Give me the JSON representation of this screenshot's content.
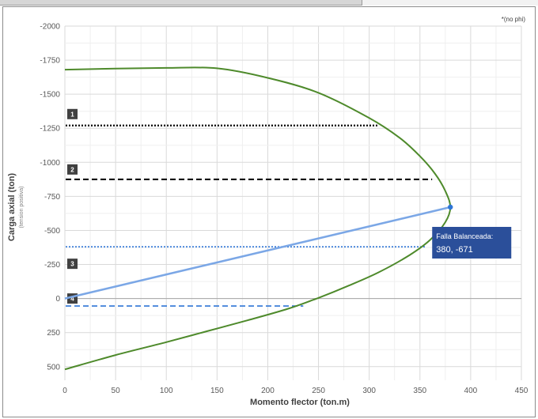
{
  "chart_data": {
    "type": "line",
    "note": "*(no phi)",
    "xlabel": "Momento flector  (ton.m)",
    "ylabel": "Carga axial  (ton)",
    "ylabel_sub": "(tension positiva)",
    "xlim": [
      0,
      450
    ],
    "ylim": [
      -2000,
      600
    ],
    "x_ticks": [
      0,
      50,
      100,
      150,
      200,
      250,
      300,
      350,
      400,
      450
    ],
    "y_ticks": [
      -2000,
      -1750,
      -1500,
      -1250,
      -1000,
      -750,
      -500,
      -250,
      0,
      250,
      500
    ],
    "y_tick_labels": [
      "-2000",
      "-1750",
      "-1500",
      "-1250",
      "-1000",
      "-750",
      "-500",
      "-250",
      "0",
      "250",
      "500"
    ],
    "y_reversed": true,
    "grid": true,
    "series": [
      {
        "color": "#4e8a2b",
        "style": "solid",
        "points": [
          [
            0,
            -1680
          ],
          [
            50,
            -1688
          ],
          [
            100,
            -1693
          ],
          [
            150,
            -1690
          ],
          [
            200,
            -1620
          ],
          [
            250,
            -1510
          ],
          [
            300,
            -1325
          ],
          [
            330,
            -1180
          ],
          [
            350,
            -1045
          ],
          [
            365,
            -915
          ],
          [
            375,
            -790
          ],
          [
            380,
            -671
          ],
          [
            375,
            -560
          ],
          [
            360,
            -430
          ],
          [
            340,
            -320
          ],
          [
            310,
            -195
          ],
          [
            280,
            -95
          ],
          [
            250,
            -5
          ],
          [
            220,
            75
          ],
          [
            180,
            160
          ],
          [
            140,
            240
          ],
          [
            100,
            320
          ],
          [
            50,
            415
          ],
          [
            0,
            520
          ]
        ]
      }
    ],
    "reference_lines": [
      {
        "label": "1",
        "y": -1270,
        "x_end": 308,
        "style": "dotted",
        "color": "#000000"
      },
      {
        "label": "2",
        "y": -875,
        "x_end": 362,
        "style": "dashed",
        "color": "#000000"
      },
      {
        "label": "3",
        "y": -380,
        "x_end": 355,
        "style": "dotted",
        "color": "#2e75d6"
      },
      {
        "label": "4",
        "y": 55,
        "x_end": 235,
        "style": "dashed",
        "color": "#2e75d6"
      }
    ],
    "balanced_line": {
      "from": [
        0,
        0
      ],
      "to": [
        380,
        -671
      ],
      "color": "#7ba7e6"
    },
    "balanced_point": {
      "x": 380,
      "y": -671,
      "color": "#2e75d6"
    },
    "balanced_label": {
      "title": "Falla Balanceada:",
      "value": "380,  -671",
      "color": "#2b4f9a"
    }
  }
}
